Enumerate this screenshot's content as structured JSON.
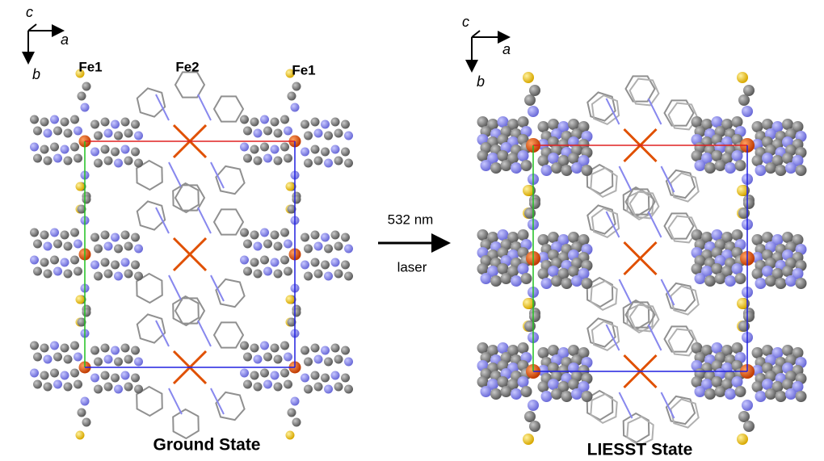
{
  "panels": [
    {
      "axes": {
        "c": "c",
        "a": "a",
        "b": "b"
      },
      "labels": [
        "Fe1",
        "Fe2",
        "Fe1"
      ],
      "caption": "Ground State"
    },
    {
      "axes": {
        "c": "c",
        "a": "a",
        "b": "b"
      },
      "caption": "LIESST State"
    }
  ],
  "arrow": {
    "top": "532 nm",
    "bottom": "laser"
  }
}
